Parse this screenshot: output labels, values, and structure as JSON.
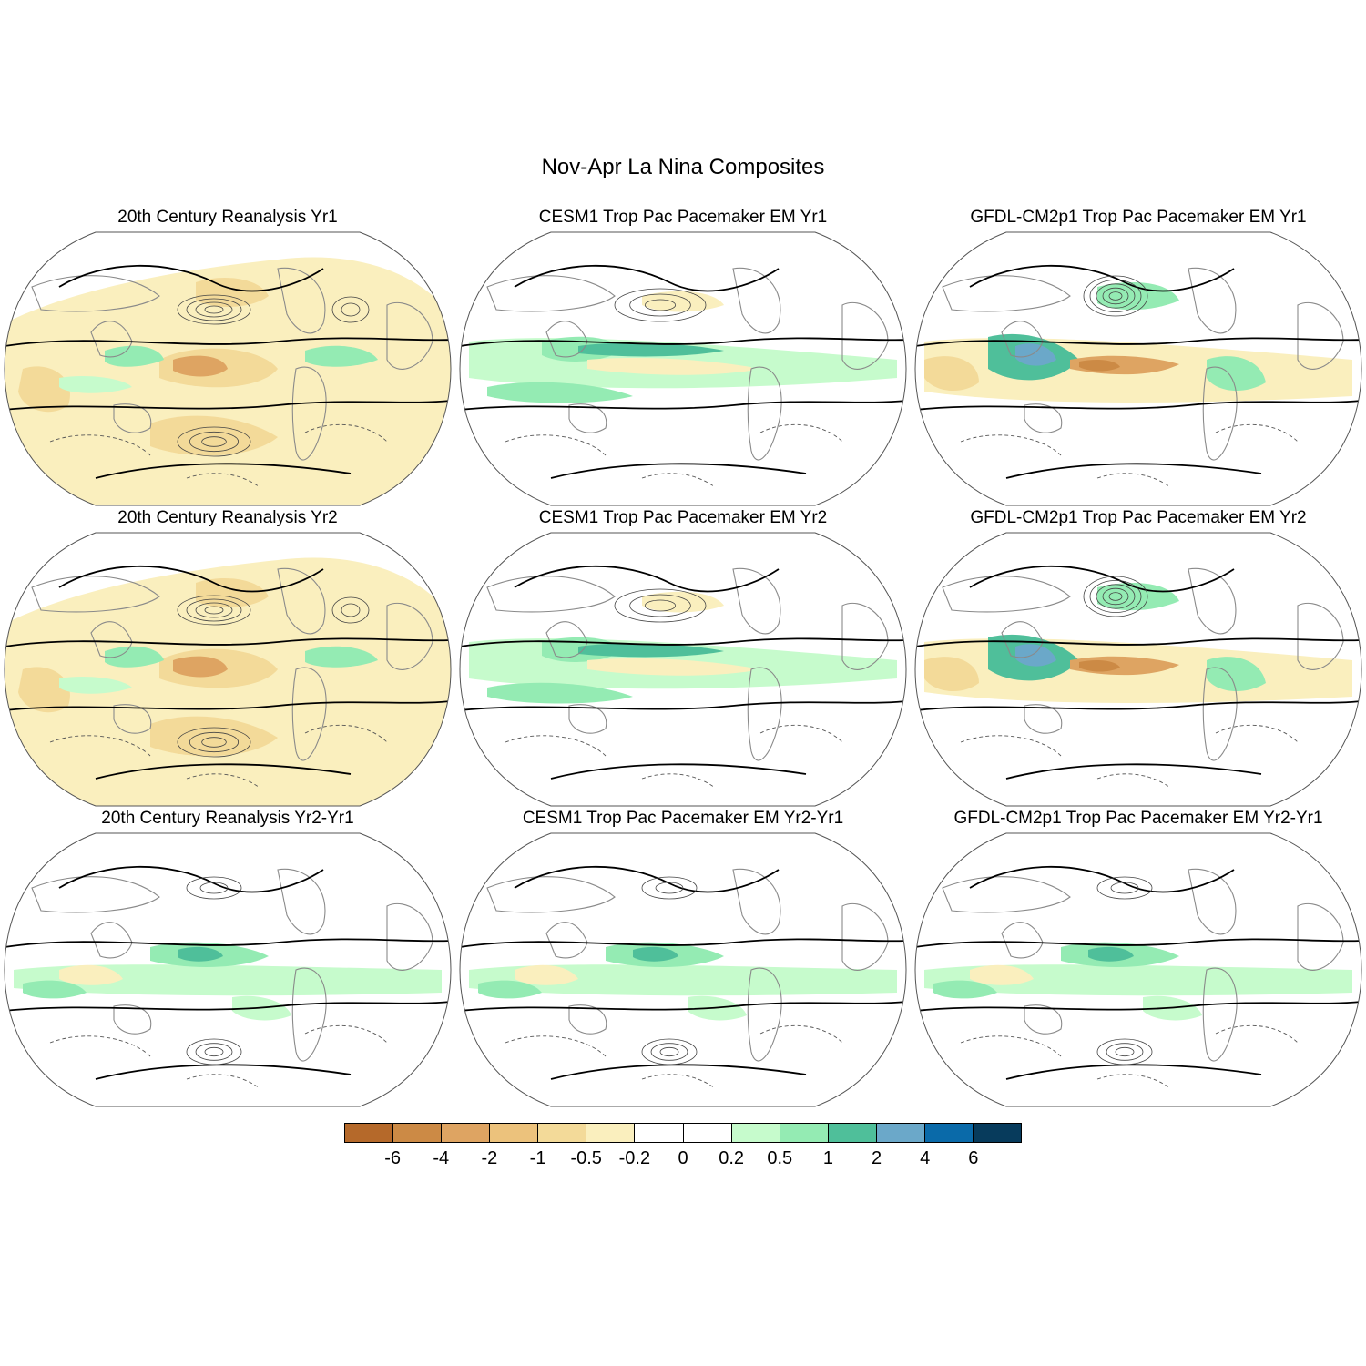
{
  "title": "Nov-Apr La Nina Composites",
  "panels": [
    {
      "title": "20th Century Reanalysis Yr1",
      "style": "dry"
    },
    {
      "title": "CESM1 Trop Pac Pacemaker EM Yr1",
      "style": "model1"
    },
    {
      "title": "GFDL-CM2p1 Trop Pac Pacemaker EM Yr1",
      "style": "model2"
    },
    {
      "title": "20th Century Reanalysis Yr2",
      "style": "dry"
    },
    {
      "title": "CESM1 Trop Pac Pacemaker EM Yr2",
      "style": "model1"
    },
    {
      "title": "GFDL-CM2p1 Trop Pac Pacemaker EM Yr2",
      "style": "model2"
    },
    {
      "title": "20th Century Reanalysis Yr2-Yr1",
      "style": "diff"
    },
    {
      "title": "CESM1 Trop Pac Pacemaker EM Yr2-Yr1",
      "style": "diff"
    },
    {
      "title": "GFDL-CM2p1 Trop Pac Pacemaker EM Yr2-Yr1",
      "style": "diff"
    }
  ],
  "colorbar": {
    "colors": [
      "#b5692a",
      "#cc8a45",
      "#dea462",
      "#ecc27c",
      "#f3da99",
      "#faefbe",
      "#ffffff",
      "#ffffff",
      "#c6fbcc",
      "#94ebb3",
      "#4fbf9a",
      "#6ba8c9",
      "#0a6aa9",
      "#073b5c"
    ],
    "labels": [
      "-6",
      "-4",
      "-2",
      "-1",
      "-0.5",
      "-0.2",
      "0",
      "0.2",
      "0.5",
      "1",
      "2",
      "4",
      "6"
    ]
  },
  "palette": {
    "dry_light": "#faefbe",
    "dry_mid": "#f3da99",
    "dry_dark": "#dea462",
    "dry_deep": "#cc8a45",
    "wet_light": "#c6fbcc",
    "wet_mid": "#94ebb3",
    "wet_dark": "#4fbf9a",
    "wet_deep": "#6ba8c9",
    "land_line": "#8a8a8a"
  }
}
